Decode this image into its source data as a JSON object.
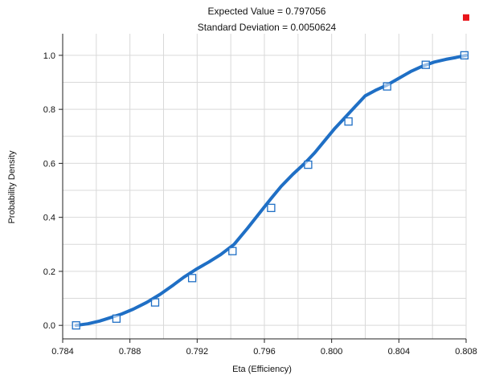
{
  "chart_data": {
    "type": "line",
    "title": "Expected Value = 0.797056",
    "subtitle": "Standard Deviation = 0.0050624",
    "xlabel": "Eta (Efficiency)",
    "ylabel": "Probability Density",
    "xlim": [
      0.784,
      0.808
    ],
    "ylim": [
      -0.05,
      1.08
    ],
    "grid": true,
    "legend": "none",
    "x_ticks": [
      0.784,
      0.788,
      0.792,
      0.796,
      0.8,
      0.804,
      0.808
    ],
    "x_tick_labels": [
      "0.784",
      "0.788",
      "0.792",
      "0.796",
      "0.800",
      "0.804",
      "0.808"
    ],
    "y_ticks": [
      0.0,
      0.2,
      0.4,
      0.6,
      0.8,
      1.0
    ],
    "y_tick_labels": [
      "0.0",
      "0.2",
      "0.4",
      "0.6",
      "0.8",
      "1.0"
    ],
    "series": [
      {
        "color": "#1f6fc5",
        "marker": "square",
        "x": [
          0.7848,
          0.7855,
          0.7862,
          0.7868,
          0.7875,
          0.7882,
          0.789,
          0.7898,
          0.7906,
          0.7912,
          0.792,
          0.7927,
          0.7934,
          0.7942,
          0.795,
          0.7957,
          0.7964,
          0.797,
          0.7977,
          0.7984,
          0.799,
          0.7996,
          0.8002,
          0.8008,
          0.8014,
          0.802,
          0.8026,
          0.8033,
          0.804,
          0.8047,
          0.8054,
          0.8061,
          0.8068,
          0.8074,
          0.808
        ],
        "y": [
          0.0,
          0.006,
          0.016,
          0.028,
          0.042,
          0.06,
          0.085,
          0.115,
          0.15,
          0.178,
          0.21,
          0.235,
          0.262,
          0.3,
          0.36,
          0.415,
          0.47,
          0.515,
          0.56,
          0.6,
          0.64,
          0.685,
          0.73,
          0.77,
          0.81,
          0.85,
          0.87,
          0.89,
          0.915,
          0.94,
          0.96,
          0.975,
          0.985,
          0.992,
          1.0
        ]
      }
    ],
    "markers": {
      "x": [
        0.7848,
        0.7872,
        0.7895,
        0.7917,
        0.7941,
        0.7964,
        0.7986,
        0.801,
        0.8033,
        0.8056,
        0.8079
      ],
      "y": [
        0.0,
        0.025,
        0.085,
        0.175,
        0.275,
        0.435,
        0.595,
        0.755,
        0.885,
        0.965,
        1.0
      ]
    },
    "corner_marks": [
      {
        "x": 0.7783,
        "y": 1.25
      },
      {
        "x": 0.808,
        "y": 1.14
      }
    ],
    "corner_mark_color": "#e8151b",
    "grid_color": "#d9d9d9",
    "axis_color": "#222222"
  }
}
